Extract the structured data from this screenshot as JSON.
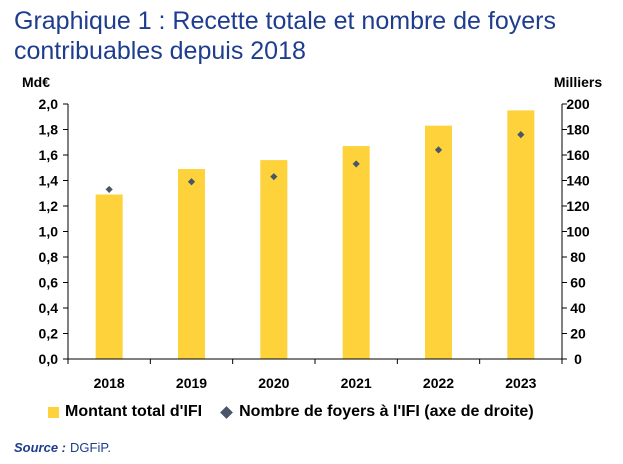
{
  "title_lines": [
    "Graphique 1 : Recette totale et nombre de foyers",
    "contribuables depuis 2018"
  ],
  "colors": {
    "title": "#1f3d8f",
    "bar": "#fdd23b",
    "dot": "#4a5568",
    "axis": "#000000"
  },
  "chart_data": {
    "type": "bar",
    "categories": [
      "2018",
      "2019",
      "2020",
      "2021",
      "2022",
      "2023"
    ],
    "series": [
      {
        "name": "Montant total d'IFI",
        "type": "bar",
        "axis": "left",
        "values": [
          1.29,
          1.49,
          1.56,
          1.67,
          1.83,
          1.95
        ]
      },
      {
        "name": "Nombre de foyers à l'IFI (axe de droite)",
        "type": "scatter",
        "axis": "right",
        "values": [
          133,
          139,
          143,
          153,
          164,
          176
        ]
      }
    ],
    "y_left": {
      "label": "Md€",
      "lim": [
        0,
        2.0
      ],
      "ticks": [
        "0,0",
        "0,2",
        "0,4",
        "0,6",
        "0,8",
        "1,0",
        "1,2",
        "1,4",
        "1,6",
        "1,8",
        "2,0"
      ]
    },
    "y_right": {
      "label": "Milliers",
      "lim": [
        0,
        200
      ],
      "ticks": [
        "0",
        "20",
        "40",
        "60",
        "80",
        "100",
        "120",
        "140",
        "160",
        "180",
        "200"
      ]
    },
    "grid": false,
    "legend_position": "bottom"
  },
  "source": {
    "label": "Source :",
    "text": "DGFiP."
  }
}
